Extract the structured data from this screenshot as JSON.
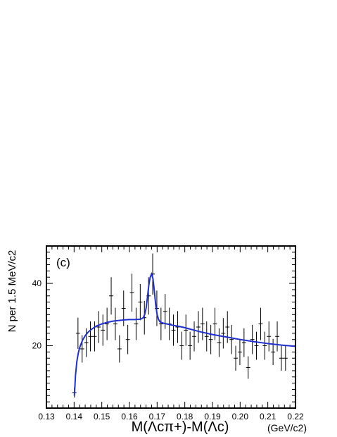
{
  "chart_data": {
    "type": "scatter",
    "panel_label": "(c)",
    "xlabel": "M(Λcπ+)-M(Λc)",
    "xunit": "(GeV/c2)",
    "ylabel": "N per 1.5 MeV/c2",
    "xlim": [
      0.13,
      0.22
    ],
    "ylim": [
      0,
      52
    ],
    "x_ticks": [
      "0.13",
      "0.14",
      "0.15",
      "0.16",
      "0.17",
      "0.18",
      "0.19",
      "0.20",
      "0.21",
      "0.22"
    ],
    "y_ticks": [
      "20",
      "40"
    ],
    "series": [
      {
        "points": [
          [
            0.1401,
            5.0,
            1.6
          ],
          [
            0.1414,
            24.0,
            5.0
          ],
          [
            0.1429,
            19.0,
            4.4
          ],
          [
            0.1444,
            21.0,
            4.6
          ],
          [
            0.1459,
            23.0,
            4.8
          ],
          [
            0.1474,
            23.0,
            4.8
          ],
          [
            0.1489,
            26.0,
            5.1
          ],
          [
            0.1504,
            25.0,
            5.0
          ],
          [
            0.1519,
            27.0,
            5.2
          ],
          [
            0.1534,
            36.0,
            6.0
          ],
          [
            0.1549,
            27.0,
            5.2
          ],
          [
            0.1564,
            19.0,
            4.4
          ],
          [
            0.1579,
            32.0,
            5.7
          ],
          [
            0.1594,
            22.0,
            4.7
          ],
          [
            0.1609,
            37.0,
            6.1
          ],
          [
            0.1624,
            27.0,
            5.2
          ],
          [
            0.1639,
            34.0,
            5.8
          ],
          [
            0.1654,
            29.0,
            5.4
          ],
          [
            0.1669,
            36.0,
            6.0
          ],
          [
            0.1684,
            43.0,
            6.6
          ],
          [
            0.1699,
            32.0,
            5.7
          ],
          [
            0.1714,
            27.0,
            5.2
          ],
          [
            0.1729,
            31.0,
            5.6
          ],
          [
            0.1744,
            27.0,
            5.2
          ],
          [
            0.1759,
            25.0,
            5.0
          ],
          [
            0.1774,
            26.0,
            5.1
          ],
          [
            0.1789,
            20.0,
            4.5
          ],
          [
            0.1804,
            25.0,
            5.0
          ],
          [
            0.1819,
            20.0,
            4.5
          ],
          [
            0.1834,
            23.0,
            4.8
          ],
          [
            0.1849,
            26.0,
            5.1
          ],
          [
            0.1864,
            27.0,
            5.2
          ],
          [
            0.1879,
            23.0,
            4.8
          ],
          [
            0.1894,
            22.0,
            4.7
          ],
          [
            0.1909,
            27.0,
            5.2
          ],
          [
            0.1924,
            21.0,
            4.6
          ],
          [
            0.1939,
            24.0,
            4.9
          ],
          [
            0.1954,
            26.0,
            5.1
          ],
          [
            0.1969,
            22.0,
            4.7
          ],
          [
            0.1984,
            16.0,
            4.0
          ],
          [
            0.1999,
            18.0,
            4.2
          ],
          [
            0.2014,
            21.0,
            4.6
          ],
          [
            0.2029,
            13.0,
            3.6
          ],
          [
            0.2044,
            22.0,
            4.7
          ],
          [
            0.2059,
            20.0,
            4.5
          ],
          [
            0.2074,
            27.0,
            5.2
          ],
          [
            0.2089,
            20.0,
            4.5
          ],
          [
            0.2104,
            23.0,
            4.8
          ],
          [
            0.2119,
            18.0,
            4.2
          ],
          [
            0.2134,
            23.0,
            4.8
          ],
          [
            0.2149,
            16.0,
            4.0
          ],
          [
            0.2164,
            16.0,
            4.0
          ]
        ],
        "color": "#000000"
      },
      {
        "type": "line",
        "x": [
          0.1401,
          0.1405,
          0.141,
          0.1415,
          0.142,
          0.143,
          0.144,
          0.145,
          0.146,
          0.148,
          0.15,
          0.152,
          0.154,
          0.156,
          0.158,
          0.16,
          0.162,
          0.164,
          0.165,
          0.1655,
          0.166,
          0.1665,
          0.167,
          0.1675,
          0.168,
          0.1685,
          0.169,
          0.1695,
          0.17,
          0.1705,
          0.171,
          0.172,
          0.174,
          0.176,
          0.178,
          0.18,
          0.185,
          0.19,
          0.195,
          0.2,
          0.205,
          0.21,
          0.215,
          0.22
        ],
        "y": [
          4.0,
          10.5,
          15.0,
          17.6,
          19.4,
          21.7,
          23.2,
          24.3,
          25.1,
          26.3,
          27.0,
          27.5,
          27.9,
          28.1,
          28.3,
          28.4,
          28.4,
          28.5,
          29.0,
          30.0,
          32.0,
          35.5,
          39.5,
          42.0,
          43.0,
          41.5,
          37.5,
          33.0,
          30.0,
          28.5,
          27.7,
          27.3,
          26.9,
          26.5,
          26.2,
          25.8,
          24.6,
          23.6,
          22.8,
          22.0,
          21.3,
          20.7,
          20.2,
          19.8
        ],
        "color": "#1f2fd0"
      }
    ]
  }
}
